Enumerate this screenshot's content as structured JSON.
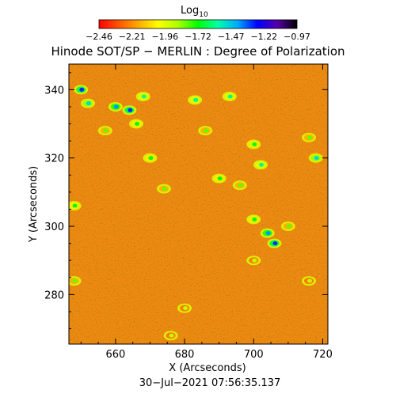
{
  "colorbar": {
    "label_main": "Log",
    "label_sub": "10",
    "tick_labels": [
      "−2.46",
      "−2.21",
      "−1.96",
      "−1.72",
      "−1.47",
      "−1.22",
      "−0.97"
    ],
    "colors": [
      "#ff0000",
      "#ff5500",
      "#ffaa00",
      "#ffff00",
      "#aaff00",
      "#00ff00",
      "#00ffaa",
      "#00aaff",
      "#0000ff",
      "#5500aa",
      "#000000"
    ]
  },
  "title": "Hinode SOT/SP − MERLIN : Degree of Polarization",
  "timestamp": "30−Jul−2021 07:56:35.137",
  "chart_data": {
    "type": "heatmap",
    "title": "Hinode SOT/SP − MERLIN : Degree of Polarization",
    "xlabel": "X (Arcseconds)",
    "ylabel": "Y (Arcseconds)",
    "xlim": [
      646.5,
      721.5
    ],
    "ylim": [
      265.5,
      347.5
    ],
    "x_ticks": [
      660,
      680,
      700,
      720
    ],
    "y_ticks": [
      280,
      300,
      320,
      340
    ],
    "value_range": [
      -2.46,
      -0.97
    ],
    "colorscale_label": "Log10",
    "background_color": "#f08a14",
    "features": [
      {
        "x": 650,
        "y": 340,
        "value": -1.3
      },
      {
        "x": 652,
        "y": 336,
        "value": -1.5
      },
      {
        "x": 660,
        "y": 335,
        "value": -1.4
      },
      {
        "x": 664,
        "y": 334,
        "value": -1.3
      },
      {
        "x": 668,
        "y": 338,
        "value": -1.6
      },
      {
        "x": 666,
        "y": 330,
        "value": -1.7
      },
      {
        "x": 657,
        "y": 328,
        "value": -1.8
      },
      {
        "x": 670,
        "y": 320,
        "value": -1.7
      },
      {
        "x": 674,
        "y": 311,
        "value": -1.8
      },
      {
        "x": 648,
        "y": 306,
        "value": -1.7
      },
      {
        "x": 648,
        "y": 284,
        "value": -1.8
      },
      {
        "x": 683,
        "y": 337,
        "value": -1.6
      },
      {
        "x": 686,
        "y": 328,
        "value": -1.8
      },
      {
        "x": 693,
        "y": 338,
        "value": -1.6
      },
      {
        "x": 700,
        "y": 324,
        "value": -1.7
      },
      {
        "x": 702,
        "y": 318,
        "value": -1.6
      },
      {
        "x": 690,
        "y": 314,
        "value": -1.7
      },
      {
        "x": 696,
        "y": 312,
        "value": -1.8
      },
      {
        "x": 700,
        "y": 302,
        "value": -1.7
      },
      {
        "x": 704,
        "y": 298,
        "value": -1.4
      },
      {
        "x": 706,
        "y": 295,
        "value": -1.3
      },
      {
        "x": 710,
        "y": 300,
        "value": -1.8
      },
      {
        "x": 718,
        "y": 320,
        "value": -1.5
      },
      {
        "x": 716,
        "y": 326,
        "value": -1.8
      },
      {
        "x": 700,
        "y": 290,
        "value": -1.9
      },
      {
        "x": 680,
        "y": 276,
        "value": -1.9
      },
      {
        "x": 676,
        "y": 268,
        "value": -1.9
      },
      {
        "x": 716,
        "y": 284,
        "value": -1.9
      }
    ]
  }
}
